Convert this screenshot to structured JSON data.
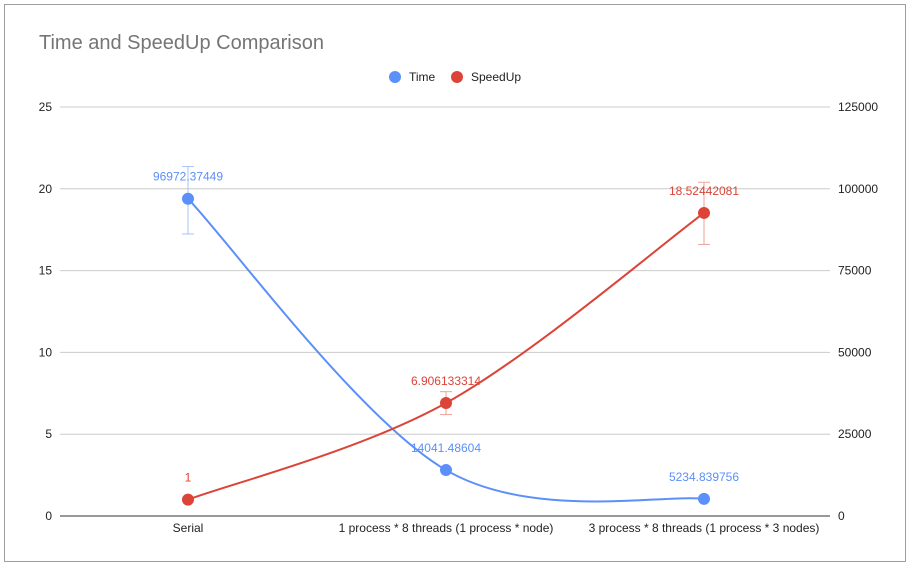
{
  "chart_data": {
    "type": "line",
    "title": "Time and SpeedUp Comparison",
    "categories": [
      "Serial",
      "1 process * 8 threads (1 process * node)",
      "3 process * 8 threads (1 process * 3 nodes)"
    ],
    "left_axis": {
      "ylim": [
        0,
        25
      ],
      "ticks": [
        "0",
        "5",
        "10",
        "15",
        "20",
        "25"
      ]
    },
    "right_axis": {
      "ylim": [
        0,
        125000
      ],
      "ticks": [
        "0",
        "25000",
        "50000",
        "75000",
        "100000",
        "125000"
      ]
    },
    "grid": true,
    "legend_position": "top",
    "series": [
      {
        "name": "Time",
        "axis": "right",
        "color": "#5b8ff9",
        "values": [
          96972.37449,
          14041.48604,
          5234.839756
        ],
        "labels": [
          "96972.37449",
          "14041.48604",
          "5234.839756"
        ],
        "error_bars": [
          [
            86200,
            106800
          ],
          null,
          null
        ]
      },
      {
        "name": "SpeedUp",
        "axis": "left",
        "color": "#db4437",
        "values": [
          1,
          6.906133314,
          18.52442081
        ],
        "labels": [
          "1",
          "6.906133314",
          "18.52442081"
        ],
        "error_bars": [
          null,
          [
            6.2,
            7.6
          ],
          [
            16.6,
            20.4
          ]
        ]
      }
    ]
  }
}
